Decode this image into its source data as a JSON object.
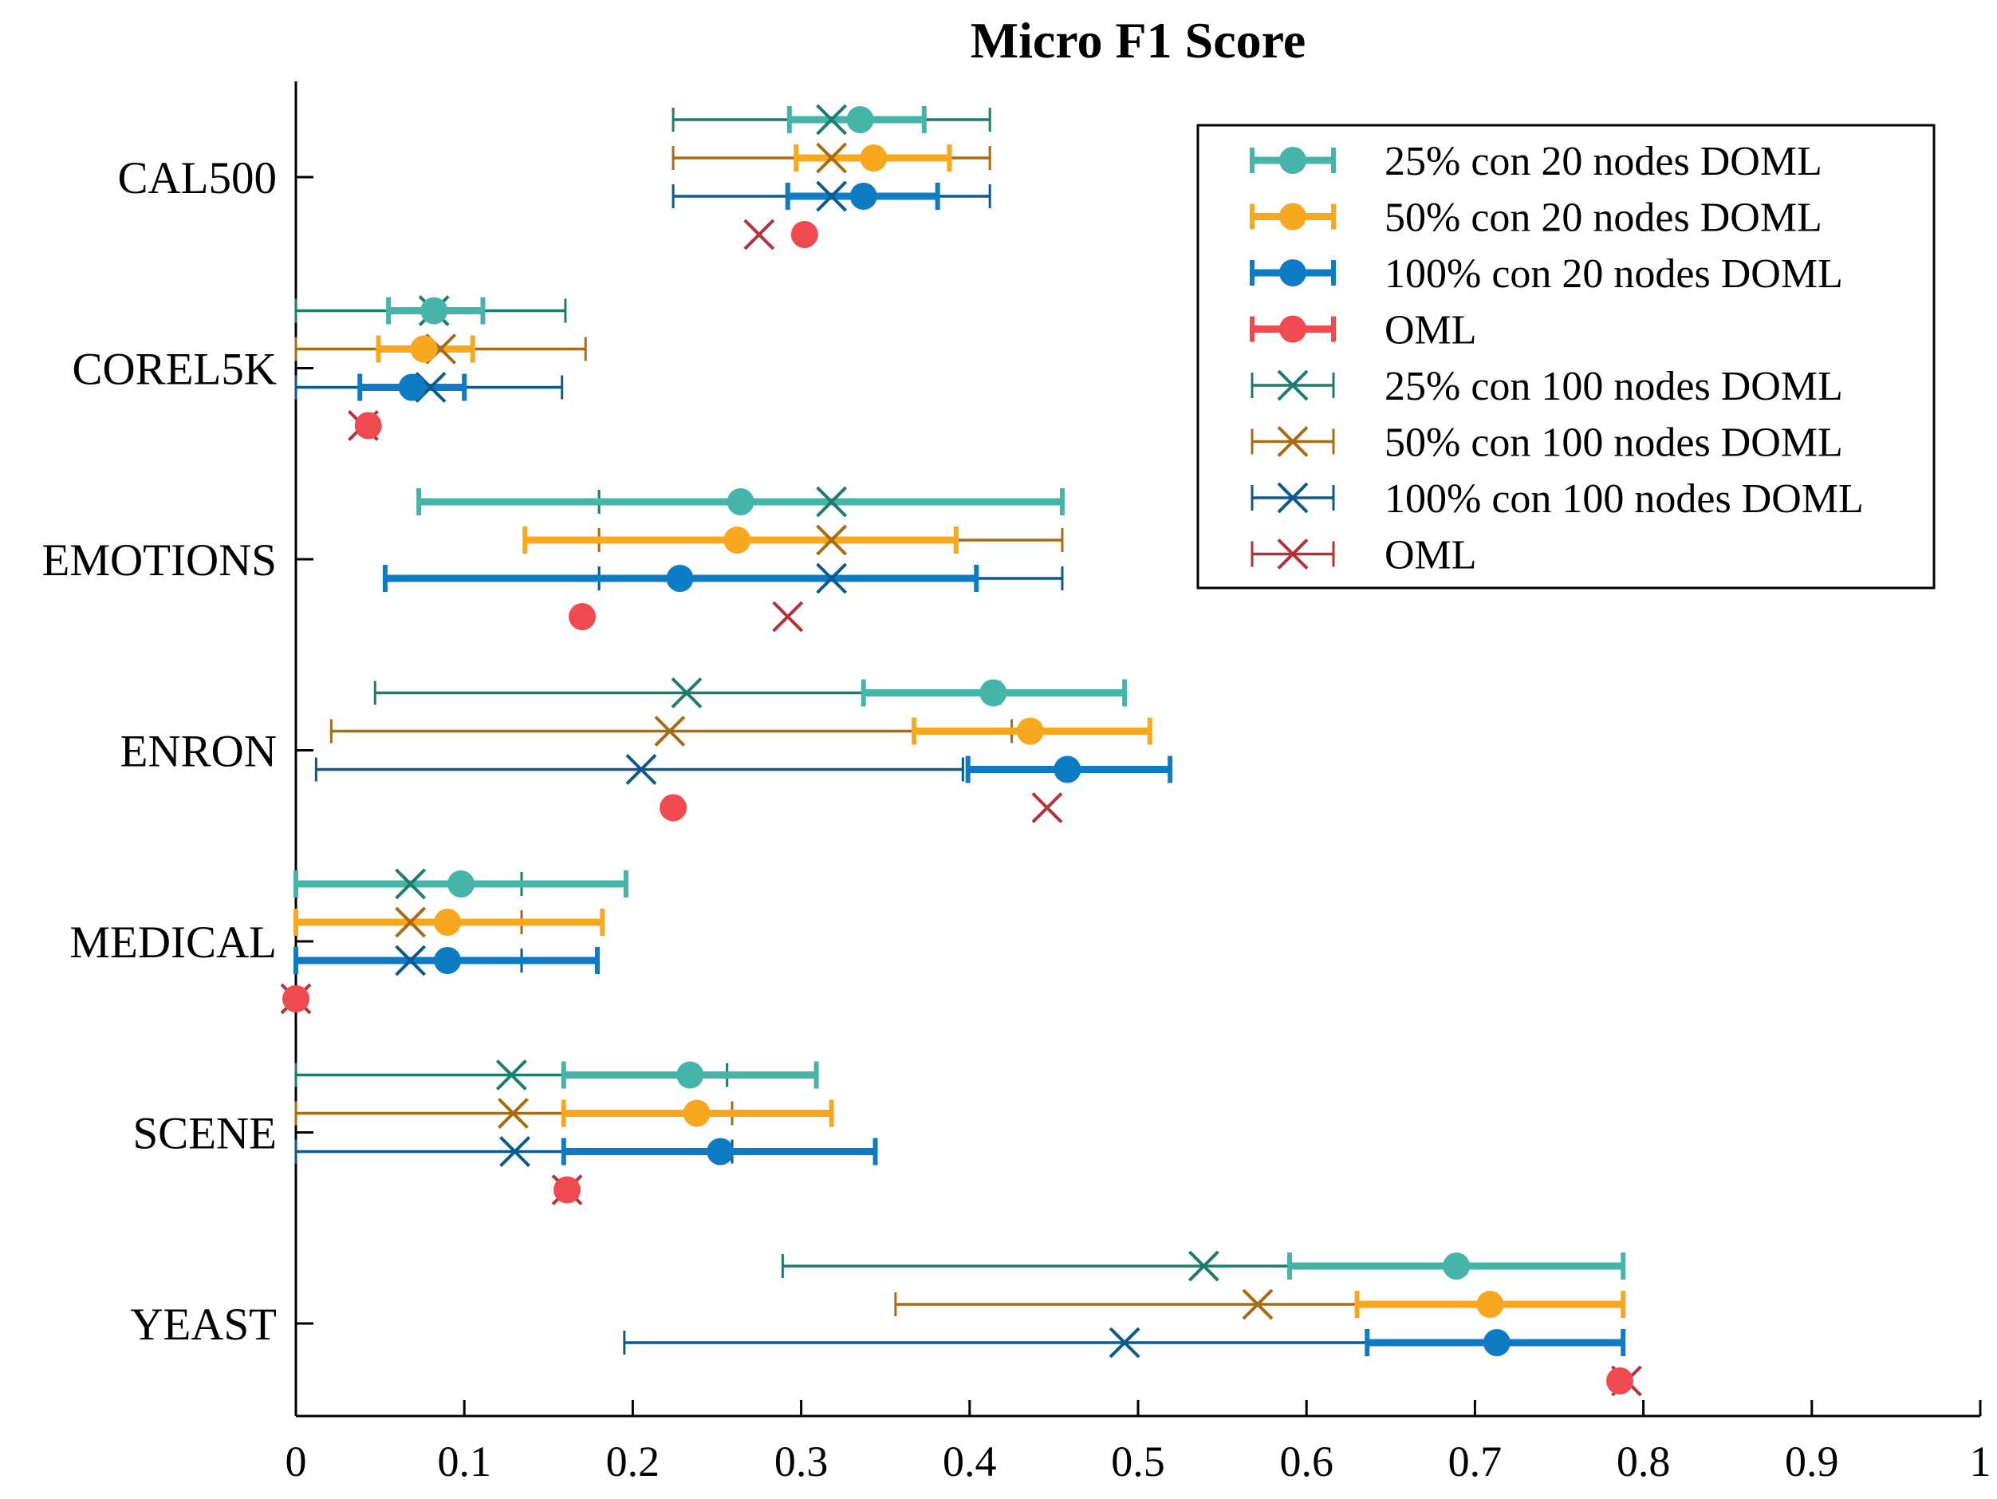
{
  "chart_data": {
    "type": "scatter",
    "subtype": "horizontal-errorbar",
    "title": "Micro F1 Score",
    "xlabel": "",
    "ylabel": "",
    "xlim": [
      0,
      1
    ],
    "xticks": [
      0,
      0.1,
      0.2,
      0.3,
      0.4,
      0.5,
      0.6,
      0.7,
      0.8,
      0.9,
      1
    ],
    "xtick_labels": [
      "0",
      "0.1",
      "0.2",
      "0.3",
      "0.4",
      "0.5",
      "0.6",
      "0.7",
      "0.8",
      "0.9",
      "1"
    ],
    "categories": [
      "CAL500",
      "COREL5K",
      "EMOTIONS",
      "ENRON",
      "MEDICAL",
      "SCENE",
      "YEAST"
    ],
    "grid": false,
    "legend_position": "top-right",
    "series": [
      {
        "name": "25% con 20 nodes DOML",
        "color": "#45b5a9",
        "marker": "circle",
        "style": "thick",
        "values": [
          0.335,
          0.082,
          0.264,
          0.414,
          0.098,
          0.234,
          0.689
        ],
        "err_low": [
          0.293,
          0.055,
          0.073,
          0.337,
          0.0,
          0.159,
          0.59
        ],
        "err_high": [
          0.373,
          0.111,
          0.455,
          0.492,
          0.196,
          0.309,
          0.788
        ]
      },
      {
        "name": "50% con 20 nodes DOML",
        "color": "#f8a81f",
        "marker": "circle",
        "style": "thick",
        "values": [
          0.343,
          0.076,
          0.262,
          0.436,
          0.09,
          0.238,
          0.709
        ],
        "err_low": [
          0.297,
          0.049,
          0.136,
          0.367,
          0.0,
          0.159,
          0.63
        ],
        "err_high": [
          0.388,
          0.105,
          0.392,
          0.507,
          0.182,
          0.318,
          0.788
        ]
      },
      {
        "name": "100% con 20 nodes DOML",
        "color": "#0e7cc4",
        "marker": "circle",
        "style": "thick",
        "values": [
          0.337,
          0.069,
          0.228,
          0.458,
          0.09,
          0.252,
          0.713
        ],
        "err_low": [
          0.292,
          0.038,
          0.053,
          0.399,
          0.0,
          0.159,
          0.636
        ],
        "err_high": [
          0.381,
          0.1,
          0.404,
          0.519,
          0.179,
          0.344,
          0.788
        ]
      },
      {
        "name": "OML",
        "color": "#ef4a4f",
        "marker": "circle",
        "style": "thick",
        "values": [
          0.302,
          0.043,
          0.17,
          0.224,
          0.0,
          0.161,
          0.786
        ]
      },
      {
        "name": "25% con 100 nodes DOML",
        "color": "#1e7c6e",
        "marker": "x",
        "style": "thin",
        "values": [
          0.318,
          0.082,
          0.318,
          0.232,
          0.068,
          0.128,
          0.539
        ],
        "err_low": [
          0.224,
          0.0,
          0.18,
          0.047,
          0.0,
          0.0,
          0.289
        ],
        "err_high": [
          0.412,
          0.16,
          0.455,
          0.418,
          0.134,
          0.256,
          0.788
        ]
      },
      {
        "name": "50% con 100 nodes DOML",
        "color": "#a86b12",
        "marker": "x",
        "style": "thin",
        "values": [
          0.318,
          0.086,
          0.318,
          0.222,
          0.068,
          0.129,
          0.571
        ],
        "err_low": [
          0.224,
          0.0,
          0.18,
          0.021,
          0.0,
          0.0,
          0.356
        ],
        "err_high": [
          0.412,
          0.172,
          0.455,
          0.425,
          0.134,
          0.259,
          0.788
        ]
      },
      {
        "name": "100% con 100 nodes DOML",
        "color": "#0a5a8f",
        "marker": "x",
        "style": "thin",
        "values": [
          0.318,
          0.08,
          0.318,
          0.205,
          0.068,
          0.13,
          0.492
        ],
        "err_low": [
          0.224,
          0.0,
          0.18,
          0.012,
          0.0,
          0.0,
          0.195
        ],
        "err_high": [
          0.412,
          0.158,
          0.455,
          0.396,
          0.134,
          0.259,
          0.788
        ]
      },
      {
        "name": "OML",
        "color": "#b2323a",
        "marker": "x",
        "style": "thin",
        "values": [
          0.275,
          0.04,
          0.292,
          0.446,
          0.0,
          0.161,
          0.79
        ]
      }
    ]
  }
}
